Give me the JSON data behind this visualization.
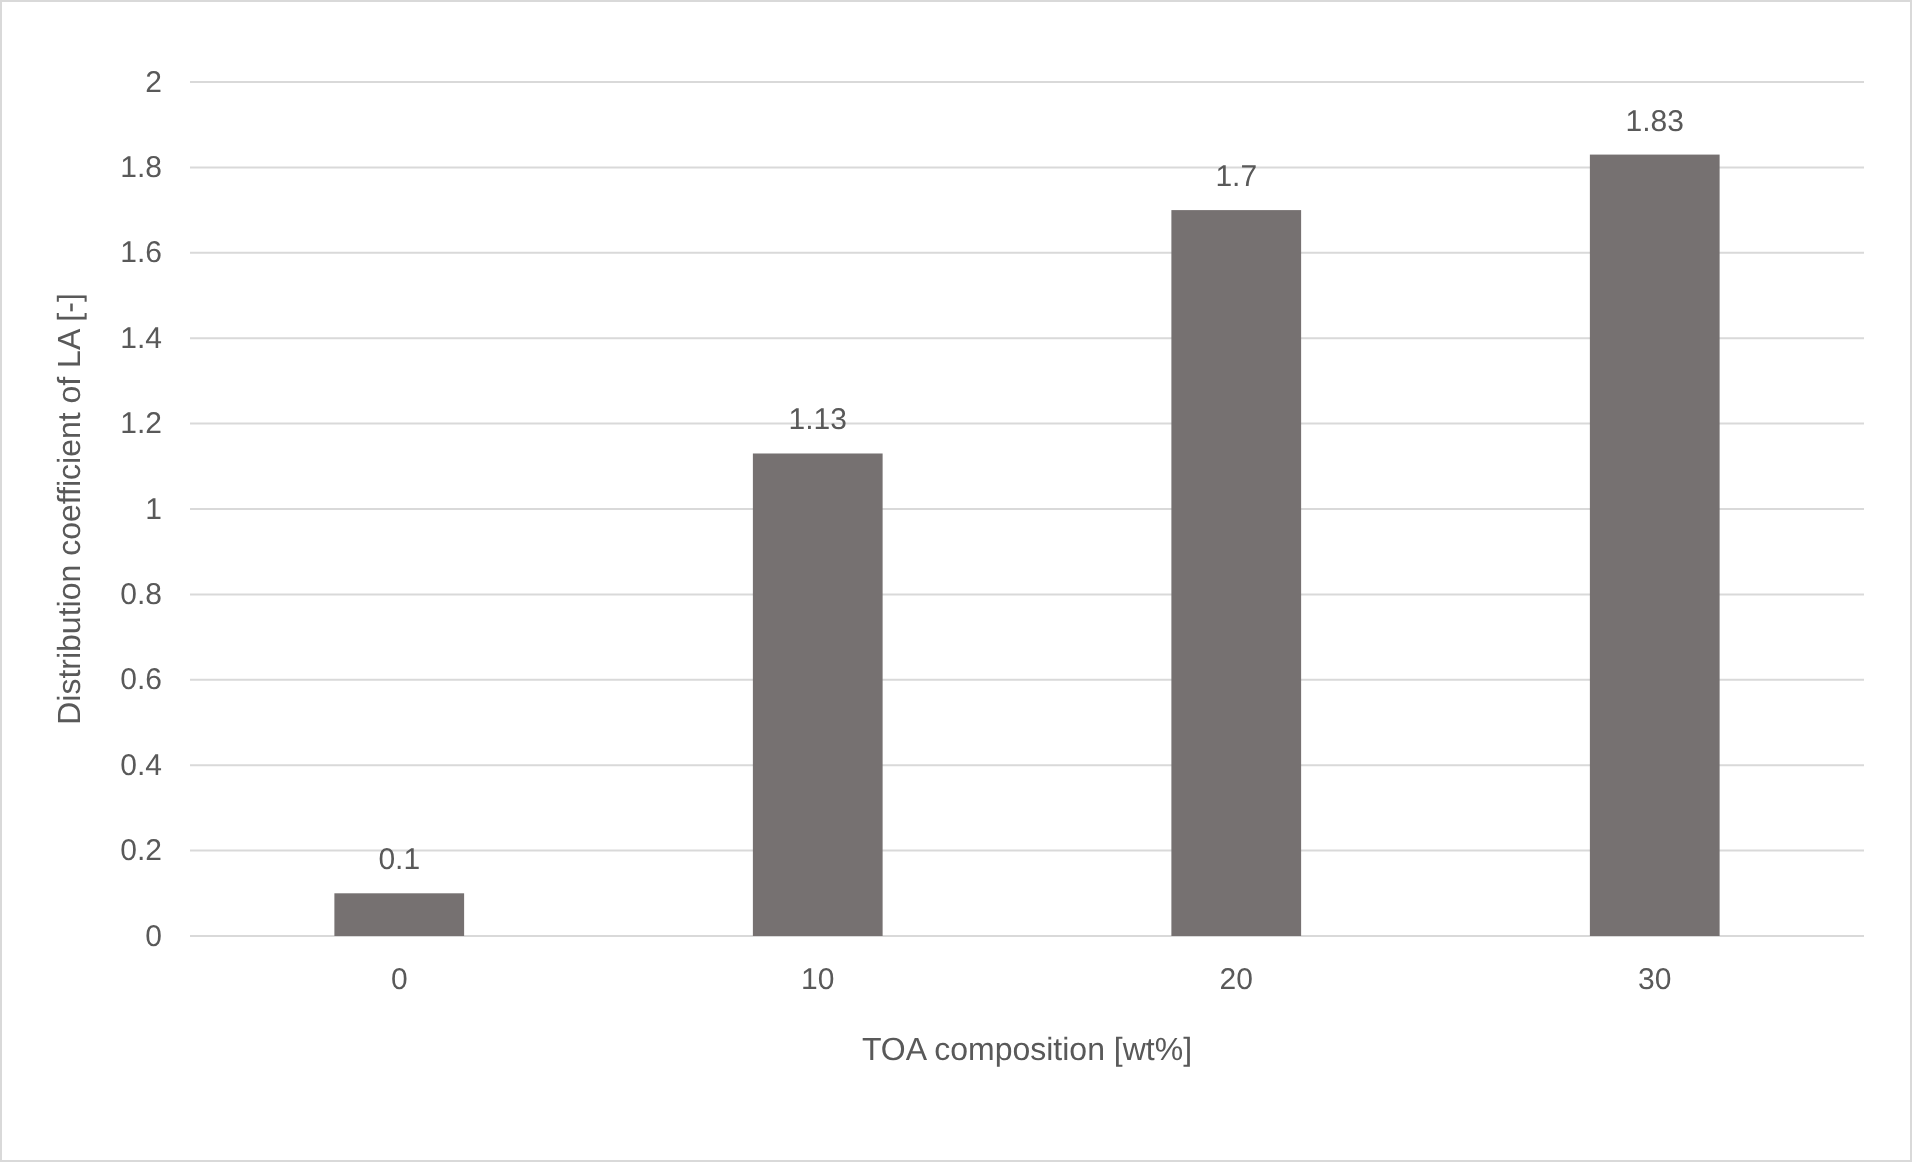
{
  "chart_data": {
    "type": "bar",
    "xlabel": "TOA composition [wt%]",
    "ylabel": "Distribution coefficient of LA [-]",
    "categories": [
      "0",
      "10",
      "20",
      "30"
    ],
    "values": [
      0.1,
      1.13,
      1.7,
      1.83
    ],
    "color": "#767171",
    "ylim": [
      0,
      2
    ],
    "yticks": [
      0,
      0.2,
      0.4,
      0.6,
      0.8,
      1,
      1.2,
      1.4,
      1.6,
      1.8,
      2
    ],
    "grid": "y",
    "data_labels": true
  }
}
